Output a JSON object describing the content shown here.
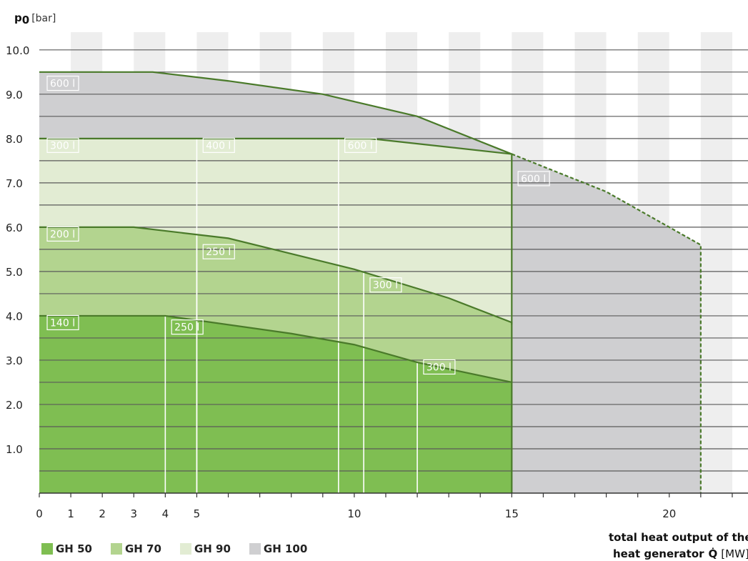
{
  "chart_data": {
    "type": "area",
    "y_label_symbol": "p",
    "y_label_subscript": "0",
    "y_unit": "[bar]",
    "x_title_line1": "total heat output of the",
    "x_title_line2_text": "heat generator",
    "x_title_symbol": "Q̇",
    "x_unit": "[MW]",
    "ylim": [
      0,
      10.4
    ],
    "xlim": [
      0,
      22.5
    ],
    "y_ticks": [
      1.0,
      2.0,
      3.0,
      4.0,
      5.0,
      6.0,
      7.0,
      8.0,
      9.0,
      10.0
    ],
    "y_tick_labels": [
      "1.0",
      "2.0",
      "3.0",
      "4.0",
      "5.0",
      "6.0",
      "7.0",
      "8.0",
      "9.0",
      "10.0"
    ],
    "x_ticks": [
      0,
      1,
      2,
      3,
      4,
      5,
      10,
      15,
      20
    ],
    "x_tick_labels": [
      "0",
      "1",
      "2",
      "3",
      "4",
      "5",
      "10",
      "15",
      "20"
    ],
    "grid": true,
    "legend_position": "bottom-left",
    "series": [
      {
        "name": "GH 100",
        "color": "#cfcfd1",
        "boundary": [
          [
            0,
            9.5
          ],
          [
            3.6,
            9.5
          ],
          [
            6,
            9.3
          ],
          [
            9,
            9.0
          ],
          [
            12,
            8.5
          ],
          [
            15,
            7.65
          ],
          [
            18,
            6.8
          ],
          [
            20,
            6.0
          ],
          [
            21,
            5.6
          ],
          [
            21,
            0
          ]
        ],
        "dashed_from_x": 15,
        "volume_dividers": [
          {
            "x": 15,
            "y_top": 7.65
          }
        ],
        "volume_labels": [
          {
            "text": "600 l",
            "x": 0.25,
            "y": 9.15
          },
          {
            "text": "600 l",
            "x": 15.2,
            "y": 7.0
          }
        ]
      },
      {
        "name": "GH 90",
        "color": "#e2ecd3",
        "boundary": [
          [
            0,
            8.0
          ],
          [
            10.5,
            8.0
          ],
          [
            15,
            7.65
          ],
          [
            15,
            3.8
          ]
        ],
        "volume_dividers": [
          {
            "x": 5.0,
            "y_top": 8.0
          },
          {
            "x": 9.5,
            "y_top": 8.0
          }
        ],
        "volume_labels": [
          {
            "text": "300 l",
            "x": 0.25,
            "y": 7.75
          },
          {
            "text": "400 l",
            "x": 5.2,
            "y": 7.75
          },
          {
            "text": "600 l",
            "x": 9.7,
            "y": 7.75
          }
        ]
      },
      {
        "name": "GH 70",
        "color": "#b3d48f",
        "boundary": [
          [
            0,
            6.0
          ],
          [
            3.0,
            6.0
          ],
          [
            6,
            5.75
          ],
          [
            10,
            5.05
          ],
          [
            13,
            4.4
          ],
          [
            15,
            3.85
          ],
          [
            15,
            2.5
          ]
        ],
        "volume_dividers": [
          {
            "x": 5.0,
            "y_top": 5.8
          },
          {
            "x": 10.3,
            "y_top": 5.0
          }
        ],
        "volume_labels": [
          {
            "text": "200 l",
            "x": 0.25,
            "y": 5.75
          },
          {
            "text": "250 l",
            "x": 5.2,
            "y": 5.35
          },
          {
            "text": "300 l",
            "x": 10.5,
            "y": 4.6
          }
        ]
      },
      {
        "name": "GH 50",
        "color": "#7fbe52",
        "boundary": [
          [
            0,
            4.0
          ],
          [
            4.0,
            4.0
          ],
          [
            8,
            3.6
          ],
          [
            10,
            3.35
          ],
          [
            12,
            2.95
          ],
          [
            15,
            2.5
          ],
          [
            15,
            0
          ]
        ],
        "volume_dividers": [
          {
            "x": 4.0,
            "y_top": 4.0
          },
          {
            "x": 12.0,
            "y_top": 2.95
          }
        ],
        "volume_labels": [
          {
            "text": "140 l",
            "x": 0.25,
            "y": 3.75
          },
          {
            "text": "250 l",
            "x": 4.2,
            "y": 3.65
          },
          {
            "text": "300 l",
            "x": 12.2,
            "y": 2.75
          }
        ]
      }
    ]
  },
  "legend": {
    "items": [
      {
        "label": "GH 50",
        "color": "#7fbe52"
      },
      {
        "label": "GH 70",
        "color": "#b3d48f"
      },
      {
        "label": "GH 90",
        "color": "#e2ecd3"
      },
      {
        "label": "GH 100",
        "color": "#cfcfd1"
      }
    ]
  },
  "colors": {
    "outline": "#4a7a2a",
    "divider": "#ffffff",
    "grid": "#5a5a5a",
    "band": "#eeeeee"
  }
}
